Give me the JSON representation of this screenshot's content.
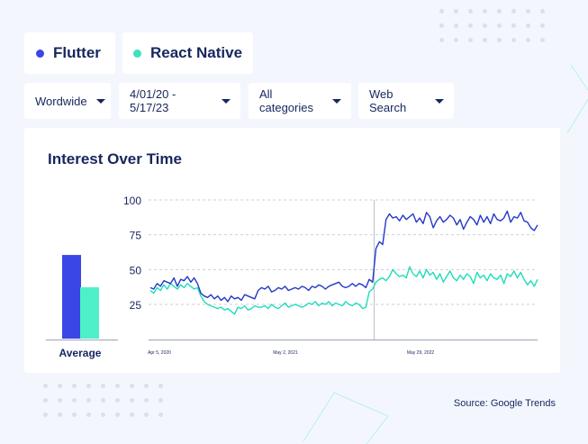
{
  "legend": [
    {
      "label": "Flutter",
      "color": "#3b46e6"
    },
    {
      "label": "React Native",
      "color": "#3fe0c0"
    }
  ],
  "filters": [
    {
      "label": "Wordwide"
    },
    {
      "label": "4/01/20 - 5/17/23"
    },
    {
      "label": "All categories"
    },
    {
      "label": "Web Search"
    }
  ],
  "card": {
    "title": "Interest Over Time"
  },
  "source": "Source: Google Trends",
  "chart_data": [
    {
      "type": "bar",
      "categories": [
        "Average"
      ],
      "series": [
        {
          "name": "Flutter",
          "values": [
            57
          ],
          "color": "#3b46e6"
        },
        {
          "name": "React Native",
          "values": [
            35
          ],
          "color": "#4df0c8"
        }
      ],
      "ylim": [
        0,
        100
      ]
    },
    {
      "type": "line",
      "x_tick_labels": [
        "Apr 5, 2020",
        "May 2, 2021",
        "May 29, 2022"
      ],
      "y_ticks": [
        25,
        50,
        75,
        100
      ],
      "ylim": [
        0,
        100
      ],
      "grid": true,
      "marker_line_at": "Apr 2022",
      "series": [
        {
          "name": "Flutter",
          "color": "#2438c9",
          "values": [
            37,
            36,
            40,
            38,
            42,
            41,
            40,
            44,
            38,
            43,
            42,
            45,
            41,
            44,
            40,
            33,
            31,
            30,
            32,
            29,
            31,
            28,
            30,
            27,
            31,
            29,
            30,
            28,
            32,
            31,
            30,
            29,
            35,
            37,
            36,
            38,
            34,
            35,
            37,
            36,
            38,
            35,
            36,
            37,
            36,
            38,
            37,
            35,
            38,
            37,
            39,
            38,
            36,
            38,
            39,
            40,
            41,
            38,
            37,
            38,
            40,
            38,
            40,
            39,
            37,
            43,
            41,
            65,
            70,
            68,
            86,
            90,
            87,
            88,
            85,
            89,
            86,
            88,
            90,
            84,
            87,
            83,
            91,
            88,
            80,
            85,
            88,
            84,
            86,
            89,
            87,
            82,
            86,
            79,
            84,
            88,
            86,
            82,
            89,
            84,
            88,
            83,
            90,
            86,
            85,
            87,
            92,
            84,
            88,
            87,
            91,
            85,
            84,
            80,
            78,
            82
          ]
        },
        {
          "name": "React Native",
          "color": "#1fdcba",
          "values": [
            35,
            33,
            37,
            35,
            39,
            36,
            40,
            38,
            36,
            39,
            37,
            40,
            38,
            36,
            37,
            31,
            27,
            25,
            24,
            23,
            22,
            23,
            21,
            22,
            20,
            18,
            23,
            22,
            24,
            21,
            22,
            24,
            23,
            23,
            24,
            22,
            25,
            23,
            22,
            24,
            26,
            23,
            24,
            25,
            24,
            23,
            24,
            26,
            25,
            27,
            24,
            26,
            25,
            27,
            24,
            26,
            25,
            24,
            27,
            25,
            24,
            26,
            25,
            22,
            23,
            34,
            36,
            41,
            43,
            44,
            42,
            45,
            50,
            47,
            45,
            46,
            44,
            52,
            47,
            45,
            49,
            44,
            50,
            46,
            48,
            43,
            47,
            41,
            45,
            49,
            44,
            42,
            46,
            43,
            47,
            45,
            40,
            48,
            44,
            46,
            42,
            47,
            44,
            43,
            46,
            40,
            47,
            45,
            49,
            44,
            48,
            43,
            39,
            42,
            38,
            43
          ]
        }
      ]
    }
  ]
}
